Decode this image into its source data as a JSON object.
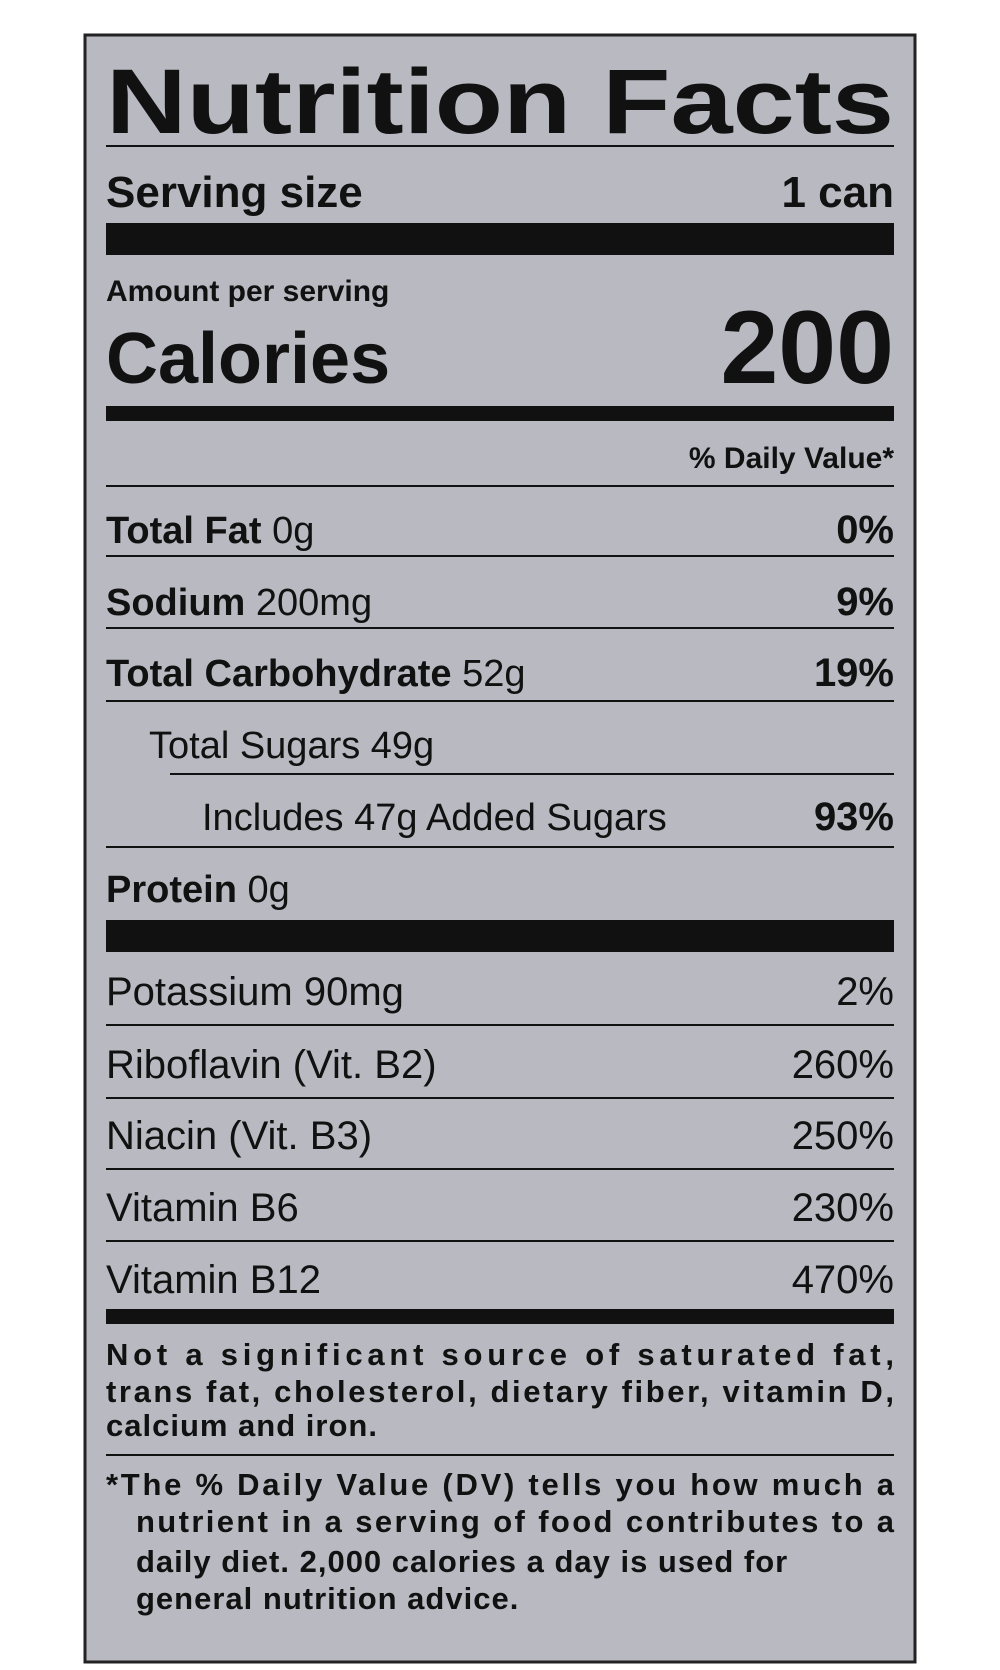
{
  "title": "Nutrition Facts",
  "serving": {
    "label": "Serving size",
    "value": "1 can"
  },
  "amount_per_serving": "Amount per serving",
  "calories": {
    "label": "Calories",
    "value": 200
  },
  "daily_value_header": "% Daily Value*",
  "nutrients": [
    {
      "name": "Total Fat",
      "amount": "0g",
      "dv": "0%"
    },
    {
      "name": "Sodium",
      "amount": "200mg",
      "dv": "9%"
    },
    {
      "name": "Total Carbohydrate",
      "amount": "52g",
      "dv": "19%"
    },
    {
      "text": "Total Sugars 49g"
    },
    {
      "text": "Includes 47g Added Sugars",
      "dv": "93%"
    },
    {
      "name": "Protein",
      "amount": "0g"
    }
  ],
  "vitamins": [
    {
      "text": "Potassium 90mg",
      "dv": "2%"
    },
    {
      "text": "Riboflavin (Vit. B2)",
      "dv": "260%"
    },
    {
      "text": "Niacin (Vit. B3)",
      "dv": "250%"
    },
    {
      "text": "Vitamin B6",
      "dv": "230%"
    },
    {
      "text": "Vitamin B12",
      "dv": "470%"
    }
  ],
  "footnotes": [
    [
      "Not a significant source of saturated fat,",
      "trans fat, cholesterol, dietary fiber, vitamin D,",
      "calcium and iron."
    ],
    [
      "*The % Daily Value (DV) tells you how much a",
      "nutrient in a serving of food contributes to a",
      "daily diet. 2,000 calories a day is used for",
      "general nutrition advice."
    ]
  ]
}
